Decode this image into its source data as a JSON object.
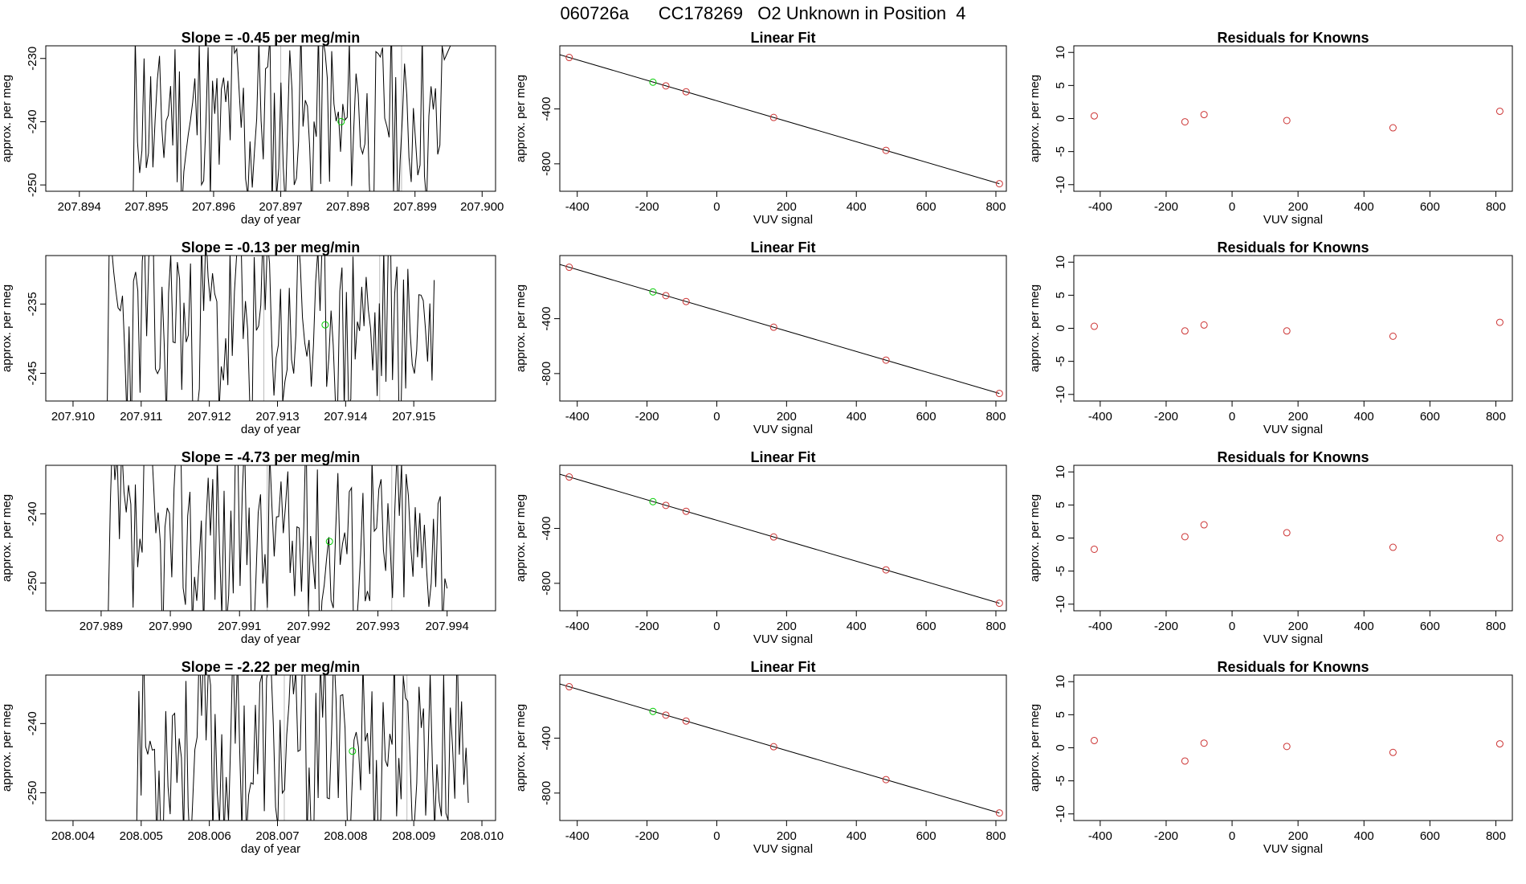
{
  "page": {
    "title": "060726a      CC178269   O2 Unknown in Position  4"
  },
  "colors": {
    "trace": "#000000",
    "unknown_point": "#00cc00",
    "known_point": "#cc3333",
    "fit_line": "#000000",
    "marker_line": "#bbbbbb"
  },
  "chart_data": [
    {
      "type": "line",
      "row": 0,
      "col": 0,
      "title": "Slope =  -0.45  per meg/min",
      "xlabel": "day of year",
      "ylabel": "approx. per meg",
      "xlim": [
        207.8935,
        207.9002
      ],
      "ylim": [
        -251,
        -228
      ],
      "xticks": [
        207.894,
        207.895,
        207.896,
        207.897,
        207.898,
        207.899,
        207.9
      ],
      "xtick_labels": [
        "207.894",
        "207.895",
        "207.896",
        "207.897",
        "207.898",
        "207.899",
        "207.900"
      ],
      "yticks": [
        -250,
        -240,
        -230
      ],
      "ytick_labels": [
        "-250",
        "-240",
        "-230"
      ],
      "markers": [
        207.897,
        207.8988
      ],
      "unknown_point": {
        "x": 207.8979,
        "y": -240
      },
      "trace": {
        "x_start": 207.8948,
        "x_end": 207.8997,
        "seed": 11,
        "lo": -251,
        "hi": -229,
        "end_rise": true
      }
    },
    {
      "type": "scatter",
      "row": 0,
      "col": 1,
      "title": "Linear Fit",
      "xlabel": "VUV signal",
      "ylabel": "approx. per meg",
      "xlim": [
        -450,
        830
      ],
      "ylim": [
        -1000,
        60
      ],
      "xticks": [
        -400,
        -200,
        0,
        200,
        400,
        600,
        800
      ],
      "xtick_labels": [
        "-400",
        "-200",
        "0",
        "200",
        "400",
        "600",
        "800"
      ],
      "yticks": [
        -800,
        -400
      ],
      "ytick_labels": [
        "-800",
        "-400"
      ],
      "fit": {
        "x": [
          -450,
          810
        ],
        "y": [
          -5,
          -945
        ]
      },
      "knowns": {
        "x": [
          -423,
          -146,
          -88,
          163,
          485,
          810
        ],
        "y": [
          -25,
          -232,
          -275,
          -462,
          -702,
          -945
        ]
      },
      "unknown": {
        "x": [
          -183
        ],
        "y": [
          -205
        ]
      }
    },
    {
      "type": "scatter",
      "row": 0,
      "col": 2,
      "title": "Residuals for Knowns",
      "xlabel": "VUV signal",
      "ylabel": "approx. per meg",
      "xlim": [
        -480,
        850
      ],
      "ylim": [
        -11,
        11
      ],
      "xticks": [
        -400,
        -200,
        0,
        200,
        400,
        600,
        800
      ],
      "xtick_labels": [
        "-400",
        "-200",
        "0",
        "200",
        "400",
        "600",
        "800"
      ],
      "yticks": [
        -10,
        -5,
        0,
        5,
        10
      ],
      "ytick_labels": [
        "-10",
        "-5",
        "0",
        "5",
        "10"
      ],
      "knowns": {
        "x": [
          -418,
          -143,
          -85,
          166,
          488,
          812
        ],
        "y": [
          0.4,
          -0.5,
          0.6,
          -0.3,
          -1.4,
          1.1
        ]
      }
    },
    {
      "type": "line",
      "row": 1,
      "col": 0,
      "title": "Slope =  -0.13  per meg/min",
      "xlabel": "day of year",
      "ylabel": "approx. per meg",
      "xlim": [
        207.9096,
        207.9162
      ],
      "ylim": [
        -249,
        -228
      ],
      "xticks": [
        207.91,
        207.911,
        207.912,
        207.913,
        207.914,
        207.915
      ],
      "xtick_labels": [
        "207.910",
        "207.911",
        "207.912",
        "207.913",
        "207.914",
        "207.915"
      ],
      "yticks": [
        -245,
        -235
      ],
      "ytick_labels": [
        "-245",
        "-235"
      ],
      "markers": [
        207.9128,
        207.9145
      ],
      "unknown_point": {
        "x": 207.9137,
        "y": -238
      },
      "trace": {
        "x_start": 207.9105,
        "x_end": 207.9153,
        "seed": 23,
        "lo": -249,
        "hi": -228,
        "end_rise": false
      }
    },
    {
      "type": "scatter",
      "row": 1,
      "col": 1,
      "title": "Linear Fit",
      "xlabel": "VUV signal",
      "ylabel": "approx. per meg",
      "xlim": [
        -450,
        830
      ],
      "ylim": [
        -1000,
        60
      ],
      "xticks": [
        -400,
        -200,
        0,
        200,
        400,
        600,
        800
      ],
      "xtick_labels": [
        "-400",
        "-200",
        "0",
        "200",
        "400",
        "600",
        "800"
      ],
      "yticks": [
        -800,
        -400
      ],
      "ytick_labels": [
        "-800",
        "-400"
      ],
      "fit": {
        "x": [
          -450,
          810
        ],
        "y": [
          -5,
          -945
        ]
      },
      "knowns": {
        "x": [
          -423,
          -146,
          -88,
          163,
          485,
          810
        ],
        "y": [
          -25,
          -232,
          -275,
          -462,
          -702,
          -945
        ]
      },
      "unknown": {
        "x": [
          -183
        ],
        "y": [
          -205
        ]
      }
    },
    {
      "type": "scatter",
      "row": 1,
      "col": 2,
      "title": "Residuals for Knowns",
      "xlabel": "VUV signal",
      "ylabel": "approx. per meg",
      "xlim": [
        -480,
        850
      ],
      "ylim": [
        -11,
        11
      ],
      "xticks": [
        -400,
        -200,
        0,
        200,
        400,
        600,
        800
      ],
      "xtick_labels": [
        "-400",
        "-200",
        "0",
        "200",
        "400",
        "600",
        "800"
      ],
      "yticks": [
        -10,
        -5,
        0,
        5,
        10
      ],
      "ytick_labels": [
        "-10",
        "-5",
        "0",
        "5",
        "10"
      ],
      "knowns": {
        "x": [
          -418,
          -143,
          -85,
          166,
          488,
          812
        ],
        "y": [
          0.3,
          -0.4,
          0.5,
          -0.4,
          -1.2,
          0.9
        ]
      }
    },
    {
      "type": "line",
      "row": 2,
      "col": 0,
      "title": "Slope =  -4.73  per meg/min",
      "xlabel": "day of year",
      "ylabel": "approx. per meg",
      "xlim": [
        207.9882,
        207.9947
      ],
      "ylim": [
        -254,
        -233
      ],
      "xticks": [
        207.989,
        207.99,
        207.991,
        207.992,
        207.993,
        207.994
      ],
      "xtick_labels": [
        "207.989",
        "207.990",
        "207.991",
        "207.992",
        "207.993",
        "207.994"
      ],
      "yticks": [
        -250,
        -240
      ],
      "ytick_labels": [
        "-250",
        "-240"
      ],
      "markers": [
        207.9914,
        207.9932
      ],
      "unknown_point": {
        "x": 207.9923,
        "y": -244
      },
      "trace": {
        "x_start": 207.9891,
        "x_end": 207.994,
        "seed": 37,
        "lo": -254,
        "hi": -233,
        "end_rise": false
      }
    },
    {
      "type": "scatter",
      "row": 2,
      "col": 1,
      "title": "Linear Fit",
      "xlabel": "VUV signal",
      "ylabel": "approx. per meg",
      "xlim": [
        -450,
        830
      ],
      "ylim": [
        -1000,
        60
      ],
      "xticks": [
        -400,
        -200,
        0,
        200,
        400,
        600,
        800
      ],
      "xtick_labels": [
        "-400",
        "-200",
        "0",
        "200",
        "400",
        "600",
        "800"
      ],
      "yticks": [
        -800,
        -400
      ],
      "ytick_labels": [
        "-800",
        "-400"
      ],
      "fit": {
        "x": [
          -450,
          810
        ],
        "y": [
          -5,
          -945
        ]
      },
      "knowns": {
        "x": [
          -423,
          -146,
          -88,
          163,
          485,
          810
        ],
        "y": [
          -25,
          -232,
          -275,
          -462,
          -702,
          -945
        ]
      },
      "unknown": {
        "x": [
          -183
        ],
        "y": [
          -205
        ]
      }
    },
    {
      "type": "scatter",
      "row": 2,
      "col": 2,
      "title": "Residuals for Knowns",
      "xlabel": "VUV signal",
      "ylabel": "approx. per meg",
      "xlim": [
        -480,
        850
      ],
      "ylim": [
        -11,
        11
      ],
      "xticks": [
        -400,
        -200,
        0,
        200,
        400,
        600,
        800
      ],
      "xtick_labels": [
        "-400",
        "-200",
        "0",
        "200",
        "400",
        "600",
        "800"
      ],
      "yticks": [
        -10,
        -5,
        0,
        5,
        10
      ],
      "ytick_labels": [
        "-10",
        "-5",
        "0",
        "5",
        "10"
      ],
      "knowns": {
        "x": [
          -418,
          -143,
          -85,
          166,
          488,
          812
        ],
        "y": [
          -1.7,
          0.2,
          2.0,
          0.8,
          -1.4,
          0.0
        ]
      }
    },
    {
      "type": "line",
      "row": 3,
      "col": 0,
      "title": "Slope =  -2.22  per meg/min",
      "xlabel": "day of year",
      "ylabel": "approx. per meg",
      "xlim": [
        208.0036,
        208.0102
      ],
      "ylim": [
        -254,
        -233
      ],
      "xticks": [
        208.004,
        208.005,
        208.006,
        208.007,
        208.008,
        208.009,
        208.01
      ],
      "xtick_labels": [
        "208.004",
        "208.005",
        "208.006",
        "208.007",
        "208.008",
        "208.009",
        "208.010"
      ],
      "yticks": [
        -250,
        -240
      ],
      "ytick_labels": [
        "-250",
        "-240"
      ],
      "markers": [
        208.0071,
        208.0089
      ],
      "unknown_point": {
        "x": 208.0081,
        "y": -244
      },
      "trace": {
        "x_start": 208.0049,
        "x_end": 208.0098,
        "seed": 53,
        "lo": -254,
        "hi": -233,
        "end_rise": false
      }
    },
    {
      "type": "scatter",
      "row": 3,
      "col": 1,
      "title": "Linear Fit",
      "xlabel": "VUV signal",
      "ylabel": "approx. per meg",
      "xlim": [
        -450,
        830
      ],
      "ylim": [
        -1000,
        60
      ],
      "xticks": [
        -400,
        -200,
        0,
        200,
        400,
        600,
        800
      ],
      "xtick_labels": [
        "-400",
        "-200",
        "0",
        "200",
        "400",
        "600",
        "800"
      ],
      "yticks": [
        -800,
        -400
      ],
      "ytick_labels": [
        "-800",
        "-400"
      ],
      "fit": {
        "x": [
          -450,
          810
        ],
        "y": [
          -5,
          -945
        ]
      },
      "knowns": {
        "x": [
          -423,
          -146,
          -88,
          163,
          485,
          810
        ],
        "y": [
          -25,
          -232,
          -275,
          -462,
          -702,
          -945
        ]
      },
      "unknown": {
        "x": [
          -183
        ],
        "y": [
          -205
        ]
      }
    },
    {
      "type": "scatter",
      "row": 3,
      "col": 2,
      "title": "Residuals for Knowns",
      "xlabel": "VUV signal",
      "ylabel": "approx. per meg",
      "xlim": [
        -480,
        850
      ],
      "ylim": [
        -11,
        11
      ],
      "xticks": [
        -400,
        -200,
        0,
        200,
        400,
        600,
        800
      ],
      "xtick_labels": [
        "-400",
        "-200",
        "0",
        "200",
        "400",
        "600",
        "800"
      ],
      "yticks": [
        -10,
        -5,
        0,
        5,
        10
      ],
      "ytick_labels": [
        "-10",
        "-5",
        "0",
        "5",
        "10"
      ],
      "knowns": {
        "x": [
          -418,
          -143,
          -85,
          166,
          488,
          812
        ],
        "y": [
          1.1,
          -2.0,
          0.7,
          0.2,
          -0.7,
          0.6
        ]
      }
    }
  ]
}
